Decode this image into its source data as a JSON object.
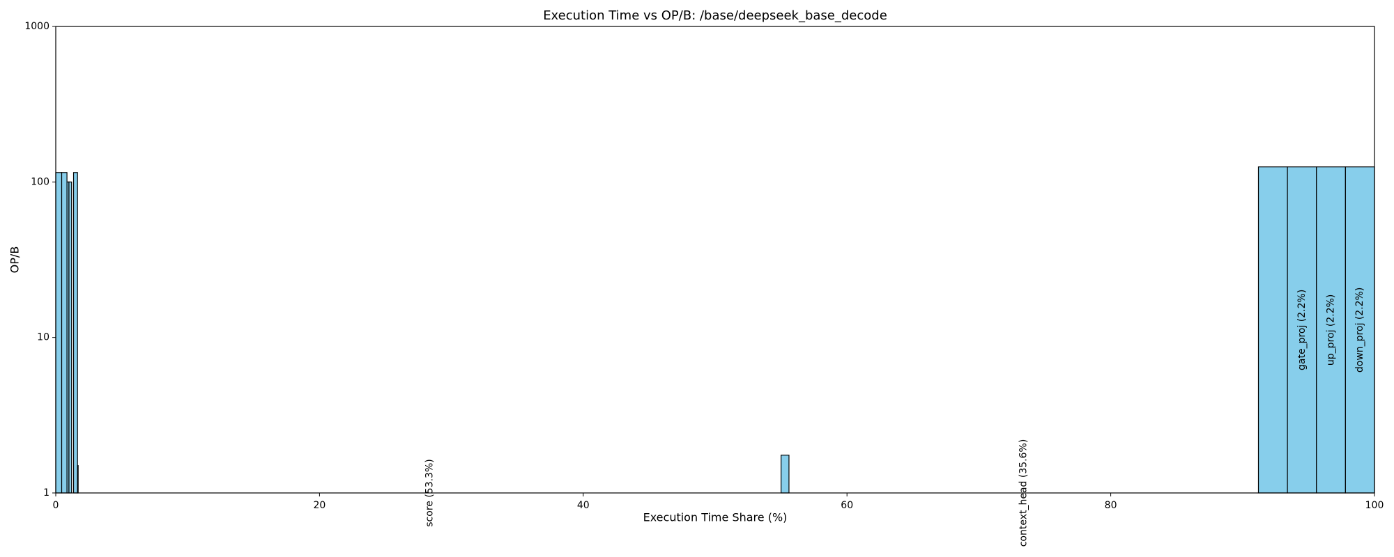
{
  "chart_data": {
    "type": "variable-width-bar",
    "title": "Execution Time vs OP/B: /base/deepseek_base_decode",
    "x_label": "Execution Time Share (%)",
    "y_label": "OP/B",
    "widths": [
      0.45,
      0.4,
      0.15,
      0.2,
      0.15,
      0.3,
      0.05,
      53.3,
      0.6,
      35.6,
      2.2,
      2.2,
      2.2,
      2.2
    ],
    "values": [
      115,
      115,
      100,
      100,
      1,
      115,
      1.5,
      1,
      1.75,
      1,
      125,
      125,
      125,
      125
    ],
    "labels": [
      null,
      null,
      null,
      null,
      null,
      null,
      null,
      "score (53.3%)",
      null,
      "context_head (35.6%)",
      null,
      "gate_proj (2.2%)",
      "up_proj (2.2%)",
      "down_proj (2.2%)"
    ],
    "color": "#87ceeb",
    "edge_color": "#000000",
    "xlim": [
      0,
      100
    ],
    "xticks": [
      0,
      20,
      40,
      60,
      80,
      100
    ],
    "ylim": [
      1,
      1000
    ],
    "yticks": [
      1,
      10,
      100,
      1000
    ],
    "y_scale": "log"
  }
}
